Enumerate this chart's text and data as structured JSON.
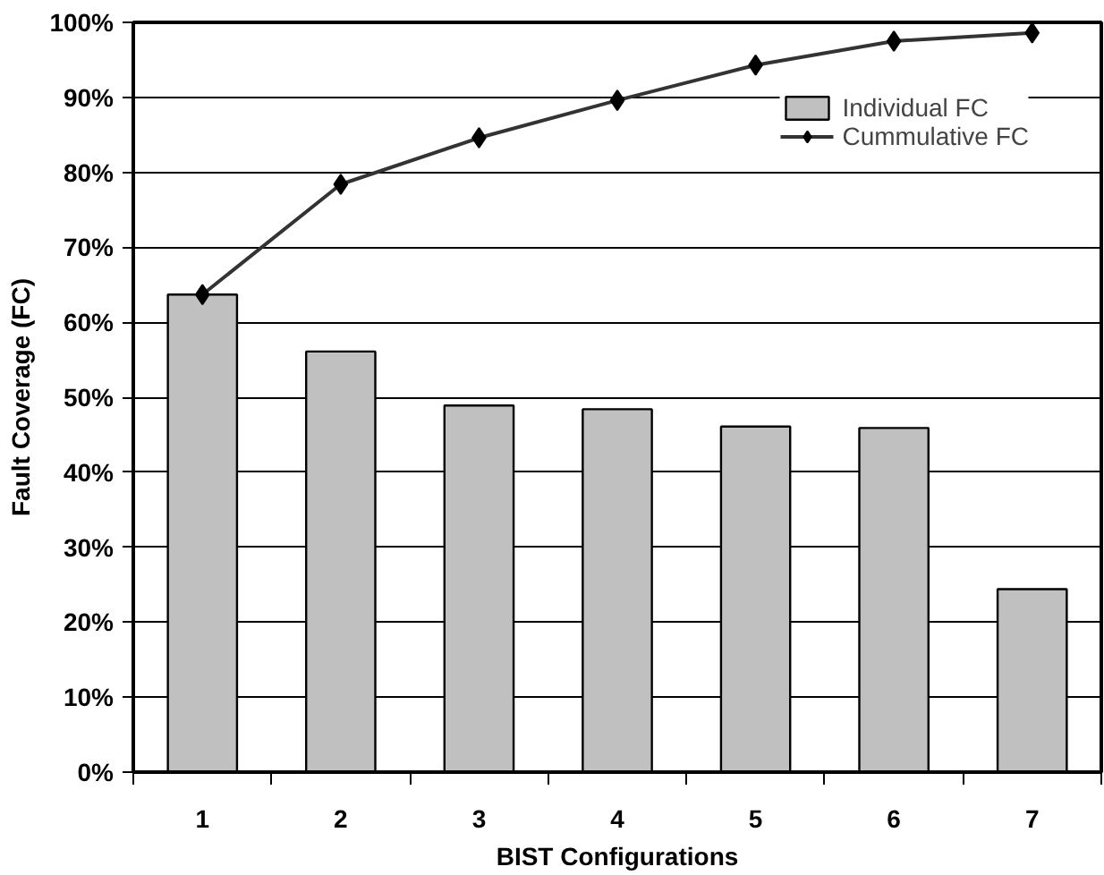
{
  "chart_data": {
    "type": "bar",
    "xlabel": "BIST Configurations",
    "ylabel": "Fault Coverage (FC)",
    "categories": [
      "1",
      "2",
      "3",
      "4",
      "5",
      "6",
      "7"
    ],
    "series": [
      {
        "name": "Individual FC",
        "color": "#c0c0c0",
        "values": [
          63.7,
          56.1,
          48.9,
          48.4,
          46.1,
          45.9,
          24.4
        ]
      },
      {
        "name": "Cummulative FC",
        "type": "line",
        "color": "#333333",
        "marker": "diamond",
        "values": [
          63.7,
          78.4,
          84.6,
          89.6,
          94.3,
          97.5,
          98.6
        ]
      }
    ],
    "ylim": [
      0,
      100
    ],
    "yticks": [
      {
        "value": 0,
        "label": "0%"
      },
      {
        "value": 10,
        "label": "10%"
      },
      {
        "value": 20,
        "label": "20%"
      },
      {
        "value": 30,
        "label": "30%"
      },
      {
        "value": 40,
        "label": "40%"
      },
      {
        "value": 50,
        "label": "50%"
      },
      {
        "value": 60,
        "label": "60%"
      },
      {
        "value": 70,
        "label": "70%"
      },
      {
        "value": 80,
        "label": "80%"
      },
      {
        "value": 90,
        "label": "90%"
      },
      {
        "value": 100,
        "label": "100%"
      }
    ],
    "grid": "y",
    "legend": "top right"
  }
}
